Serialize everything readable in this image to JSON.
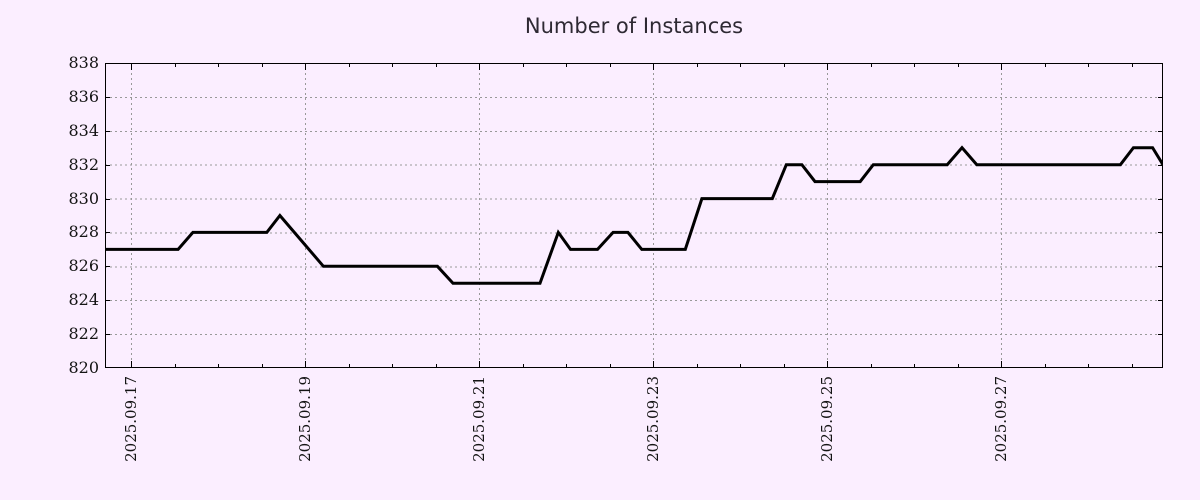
{
  "page": {
    "background_color": "#fbeeff"
  },
  "chart_data": {
    "type": "line",
    "title": "Number of Instances",
    "grid": true,
    "legend": "none",
    "line_color": "#000000",
    "grid_color": "#999999",
    "axis_color": "#000000",
    "label_color": "#141414",
    "x_axis": {
      "label": "",
      "tick_labels": [
        "2025.09.17",
        "2025.09.19",
        "2025.09.21",
        "2025.09.23",
        "2025.09.25",
        "2025.09.27"
      ],
      "major_tick_day_offsets": [
        0,
        2,
        4,
        6,
        8,
        10
      ],
      "minor_tick_interval_days": 0.5,
      "range_day_offsets": [
        -0.3,
        11.86
      ],
      "epoch_date": "2025.09.17"
    },
    "y_axis": {
      "label": "",
      "ticks": [
        820,
        822,
        824,
        826,
        828,
        830,
        832,
        834,
        836,
        838
      ],
      "range": [
        820,
        838
      ]
    },
    "series": [
      {
        "name": "instances",
        "points": [
          [
            -0.3,
            827
          ],
          [
            0.54,
            827
          ],
          [
            0.71,
            828
          ],
          [
            1.56,
            828
          ],
          [
            1.71,
            829
          ],
          [
            2.21,
            826
          ],
          [
            3.52,
            826
          ],
          [
            3.7,
            825
          ],
          [
            4.7,
            825
          ],
          [
            4.91,
            828
          ],
          [
            5.05,
            827
          ],
          [
            5.36,
            827
          ],
          [
            5.54,
            828
          ],
          [
            5.71,
            828
          ],
          [
            5.87,
            827
          ],
          [
            6.37,
            827
          ],
          [
            6.56,
            830
          ],
          [
            7.37,
            830
          ],
          [
            7.53,
            832
          ],
          [
            7.71,
            832
          ],
          [
            7.86,
            831
          ],
          [
            8.38,
            831
          ],
          [
            8.53,
            832
          ],
          [
            9.38,
            832
          ],
          [
            9.55,
            833
          ],
          [
            9.72,
            832
          ],
          [
            11.37,
            832
          ],
          [
            11.52,
            833
          ],
          [
            11.74,
            833
          ],
          [
            11.86,
            832
          ]
        ]
      }
    ]
  }
}
